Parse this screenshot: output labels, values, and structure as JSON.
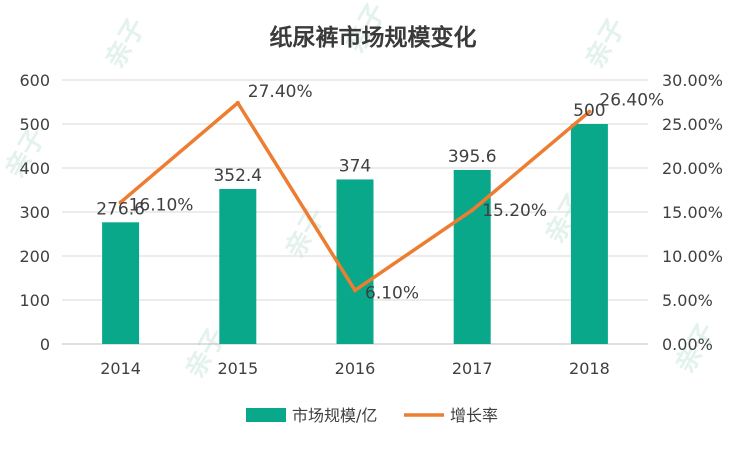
{
  "chart_data": {
    "type": "bar+line",
    "title": "纸尿裤市场规模变化",
    "categories": [
      "2014",
      "2015",
      "2016",
      "2017",
      "2018"
    ],
    "series": [
      {
        "name": "市场规模/亿",
        "type": "bar",
        "axis": "left",
        "values": [
          276.6,
          352.4,
          374,
          395.6,
          500
        ],
        "labels": [
          "276.6",
          "352.4",
          "374",
          "395.6",
          "500"
        ],
        "color": "#0aa88a"
      },
      {
        "name": "增长率",
        "type": "line",
        "axis": "right",
        "values": [
          16.1,
          27.4,
          6.1,
          15.2,
          26.4
        ],
        "labels": [
          "16.10%",
          "27.40%",
          "6.10%",
          "15.20%",
          "26.40%"
        ],
        "color": "#ed7d31"
      }
    ],
    "y_left": {
      "min": 0,
      "max": 600,
      "ticks": [
        "0",
        "100",
        "200",
        "300",
        "400",
        "500",
        "600"
      ]
    },
    "y_right": {
      "min": 0,
      "max": 30,
      "ticks": [
        "0.00%",
        "5.00%",
        "10.00%",
        "15.00%",
        "20.00%",
        "25.00%",
        "30.00%"
      ]
    },
    "grid": true,
    "legend_position": "bottom"
  },
  "watermark": {
    "text": "亲子",
    "color": "#cfe8e0"
  }
}
